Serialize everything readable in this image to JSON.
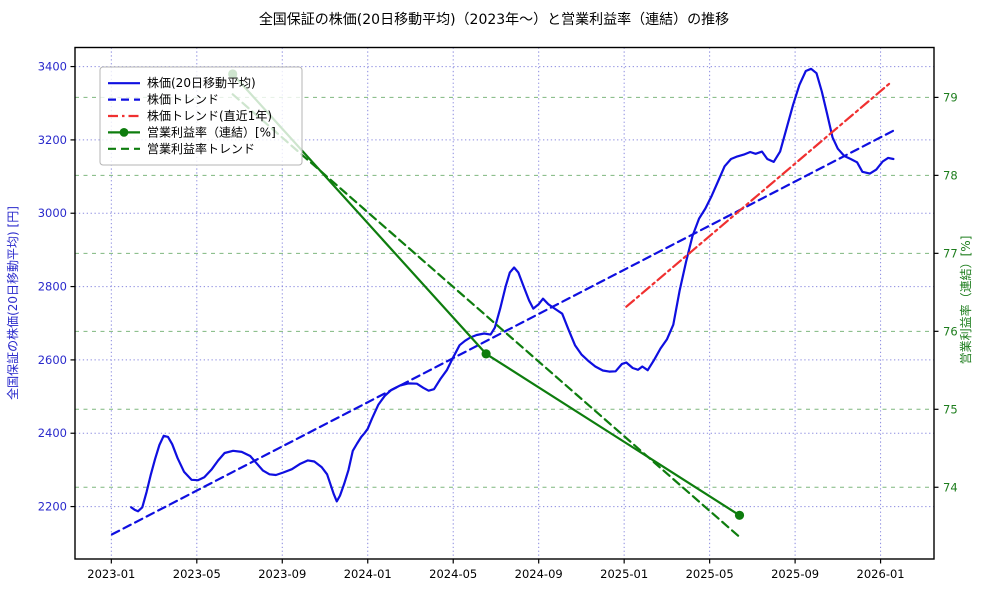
{
  "title": "全国保証の株価(20日移動平均)（2023年〜）と営業利益率（連結）の推移",
  "chart_data": {
    "type": "line",
    "title": "全国保証の株価(20日移動平均)（2023年〜）と営業利益率（連結）の推移",
    "x_axis": {
      "unit": "months since 2023-01",
      "range": [
        -1.7,
        38.5
      ],
      "ticks": [
        {
          "t": 0,
          "label": "2023-01"
        },
        {
          "t": 4,
          "label": "2023-05"
        },
        {
          "t": 8,
          "label": "2023-09"
        },
        {
          "t": 12,
          "label": "2024-01"
        },
        {
          "t": 16,
          "label": "2024-05"
        },
        {
          "t": 20,
          "label": "2024-09"
        },
        {
          "t": 24,
          "label": "2025-01"
        },
        {
          "t": 28,
          "label": "2025-05"
        },
        {
          "t": 32,
          "label": "2025-09"
        },
        {
          "t": 36,
          "label": "2026-01"
        }
      ]
    },
    "left_axis": {
      "label": "全国保証の株価(20日移動平均) [円]",
      "color": "#2a2acc",
      "line_color": "#0f0fe0",
      "ticks": [
        2200,
        2400,
        2600,
        2800,
        3000,
        3200,
        3400
      ],
      "range": [
        2057,
        3452
      ],
      "grid": {
        "color": "#8a8adf",
        "style": "dotted"
      }
    },
    "right_axis": {
      "label": "営業利益率（連結）[%]",
      "color": "#1d7d1d",
      "line_color": "#0e7d0e",
      "ticks": [
        74,
        75,
        76,
        77,
        78,
        79
      ],
      "range": [
        73.08,
        79.64
      ],
      "grid": {
        "color": "#7fb77f",
        "style": "dashed"
      }
    },
    "legend": {
      "position": "upper-left",
      "background": "rgba(255,255,255,0.8)",
      "border": "#b4b4b4"
    },
    "series": [
      {
        "key": "price-ma",
        "name": "株価(20日移動平均)",
        "axis": "left",
        "color": "#0f0fe0",
        "line_style": "solid",
        "marker": false,
        "points": [
          [
            0.93,
            2198
          ],
          [
            1.1,
            2191
          ],
          [
            1.25,
            2187
          ],
          [
            1.45,
            2198
          ],
          [
            1.65,
            2240
          ],
          [
            1.85,
            2288
          ],
          [
            2.05,
            2330
          ],
          [
            2.25,
            2368
          ],
          [
            2.45,
            2393
          ],
          [
            2.65,
            2390
          ],
          [
            2.85,
            2370
          ],
          [
            3.1,
            2332
          ],
          [
            3.4,
            2295
          ],
          [
            3.75,
            2273
          ],
          [
            4.05,
            2272
          ],
          [
            4.35,
            2280
          ],
          [
            4.7,
            2302
          ],
          [
            5.0,
            2326
          ],
          [
            5.3,
            2346
          ],
          [
            5.7,
            2352
          ],
          [
            6.1,
            2349
          ],
          [
            6.5,
            2338
          ],
          [
            6.8,
            2318
          ],
          [
            7.1,
            2298
          ],
          [
            7.4,
            2288
          ],
          [
            7.7,
            2286
          ],
          [
            8.05,
            2293
          ],
          [
            8.45,
            2302
          ],
          [
            8.85,
            2317
          ],
          [
            9.2,
            2326
          ],
          [
            9.5,
            2323
          ],
          [
            9.85,
            2307
          ],
          [
            10.1,
            2288
          ],
          [
            10.25,
            2262
          ],
          [
            10.4,
            2235
          ],
          [
            10.55,
            2214
          ],
          [
            10.7,
            2230
          ],
          [
            10.9,
            2262
          ],
          [
            11.1,
            2300
          ],
          [
            11.3,
            2352
          ],
          [
            11.5,
            2372
          ],
          [
            11.7,
            2390
          ],
          [
            11.85,
            2400
          ],
          [
            12.0,
            2412
          ],
          [
            12.2,
            2440
          ],
          [
            12.5,
            2478
          ],
          [
            12.8,
            2502
          ],
          [
            13.1,
            2518
          ],
          [
            13.5,
            2530
          ],
          [
            13.9,
            2536
          ],
          [
            14.3,
            2535
          ],
          [
            14.6,
            2524
          ],
          [
            14.85,
            2516
          ],
          [
            15.1,
            2520
          ],
          [
            15.4,
            2548
          ],
          [
            15.7,
            2572
          ],
          [
            16.0,
            2607
          ],
          [
            16.3,
            2640
          ],
          [
            16.55,
            2652
          ],
          [
            16.8,
            2661
          ],
          [
            17.1,
            2668
          ],
          [
            17.45,
            2672
          ],
          [
            17.75,
            2669
          ],
          [
            17.95,
            2688
          ],
          [
            18.2,
            2740
          ],
          [
            18.45,
            2800
          ],
          [
            18.65,
            2838
          ],
          [
            18.85,
            2852
          ],
          [
            19.05,
            2838
          ],
          [
            19.3,
            2800
          ],
          [
            19.55,
            2762
          ],
          [
            19.75,
            2740
          ],
          [
            20.0,
            2752
          ],
          [
            20.2,
            2767
          ],
          [
            20.45,
            2752
          ],
          [
            20.75,
            2740
          ],
          [
            21.1,
            2726
          ],
          [
            21.4,
            2682
          ],
          [
            21.7,
            2640
          ],
          [
            22.0,
            2615
          ],
          [
            22.35,
            2596
          ],
          [
            22.65,
            2582
          ],
          [
            23.0,
            2571
          ],
          [
            23.3,
            2568
          ],
          [
            23.6,
            2569
          ],
          [
            23.9,
            2589
          ],
          [
            24.1,
            2593
          ],
          [
            24.4,
            2578
          ],
          [
            24.65,
            2573
          ],
          [
            24.85,
            2582
          ],
          [
            25.1,
            2572
          ],
          [
            25.4,
            2600
          ],
          [
            25.7,
            2631
          ],
          [
            26.0,
            2656
          ],
          [
            26.3,
            2696
          ],
          [
            26.6,
            2790
          ],
          [
            26.9,
            2868
          ],
          [
            27.2,
            2938
          ],
          [
            27.5,
            2985
          ],
          [
            27.8,
            3013
          ],
          [
            28.1,
            3048
          ],
          [
            28.4,
            3088
          ],
          [
            28.7,
            3128
          ],
          [
            29.0,
            3148
          ],
          [
            29.3,
            3155
          ],
          [
            29.6,
            3160
          ],
          [
            29.9,
            3167
          ],
          [
            30.15,
            3162
          ],
          [
            30.45,
            3168
          ],
          [
            30.7,
            3148
          ],
          [
            31.0,
            3140
          ],
          [
            31.3,
            3168
          ],
          [
            31.6,
            3232
          ],
          [
            31.9,
            3295
          ],
          [
            32.2,
            3350
          ],
          [
            32.5,
            3388
          ],
          [
            32.75,
            3394
          ],
          [
            33.0,
            3382
          ],
          [
            33.25,
            3332
          ],
          [
            33.5,
            3270
          ],
          [
            33.75,
            3207
          ],
          [
            34.0,
            3176
          ],
          [
            34.3,
            3156
          ],
          [
            34.6,
            3148
          ],
          [
            34.9,
            3139
          ],
          [
            35.15,
            3113
          ],
          [
            35.5,
            3108
          ],
          [
            35.8,
            3119
          ],
          [
            36.1,
            3141
          ],
          [
            36.35,
            3151
          ],
          [
            36.6,
            3148
          ]
        ]
      },
      {
        "key": "price-trend",
        "name": "株価トレンド",
        "axis": "left",
        "color": "#0f0fe0",
        "line_style": "dashed",
        "marker": false,
        "points": [
          [
            0.03,
            2124
          ],
          [
            36.6,
            3225
          ]
        ]
      },
      {
        "key": "price-trend-recent-1y",
        "name": "株価トレンド(直近1年)",
        "axis": "left",
        "color": "#f03030",
        "line_style": "dashdot",
        "marker": false,
        "points": [
          [
            24.1,
            2745
          ],
          [
            36.5,
            3358
          ]
        ]
      },
      {
        "key": "operating-margin",
        "name": "営業利益率（連結）[%]",
        "axis": "right",
        "color": "#0e7d0e",
        "line_style": "solid",
        "marker": true,
        "points": [
          [
            5.68,
            79.3
          ],
          [
            17.54,
            75.71
          ],
          [
            29.4,
            73.64
          ]
        ]
      },
      {
        "key": "operating-margin-trend",
        "name": "営業利益率トレンド",
        "axis": "right",
        "color": "#0e7d0e",
        "line_style": "dashed",
        "marker": false,
        "points": [
          [
            5.68,
            79.04
          ],
          [
            29.45,
            73.35
          ]
        ]
      }
    ]
  }
}
